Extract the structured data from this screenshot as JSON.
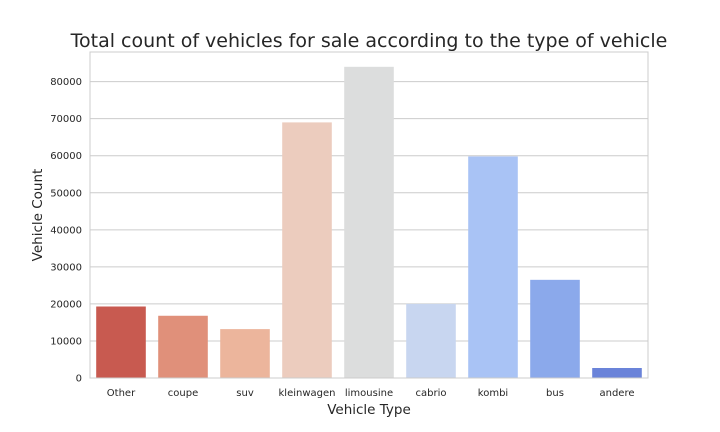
{
  "chart_data": {
    "type": "bar",
    "title": "Total count of vehicles for sale according to the type of vehicle",
    "xlabel": "Vehicle Type",
    "ylabel": "Vehicle Count",
    "categories": [
      "Other",
      "coupe",
      "suv",
      "kleinwagen",
      "limousine",
      "cabrio",
      "kombi",
      "bus",
      "andere"
    ],
    "values": [
      19300,
      16800,
      13200,
      69000,
      84000,
      20000,
      59800,
      26500,
      2700
    ],
    "colors": [
      "#c85a50",
      "#e0907a",
      "#ecb59c",
      "#ecccbe",
      "#dcdddd",
      "#c8d6f0",
      "#a9c3f5",
      "#8ba9eb",
      "#6a83d9"
    ],
    "ylim": [
      0,
      88000
    ],
    "yticks": [
      0,
      10000,
      20000,
      30000,
      40000,
      50000,
      60000,
      70000,
      80000
    ],
    "grid": true,
    "legend": "none"
  }
}
